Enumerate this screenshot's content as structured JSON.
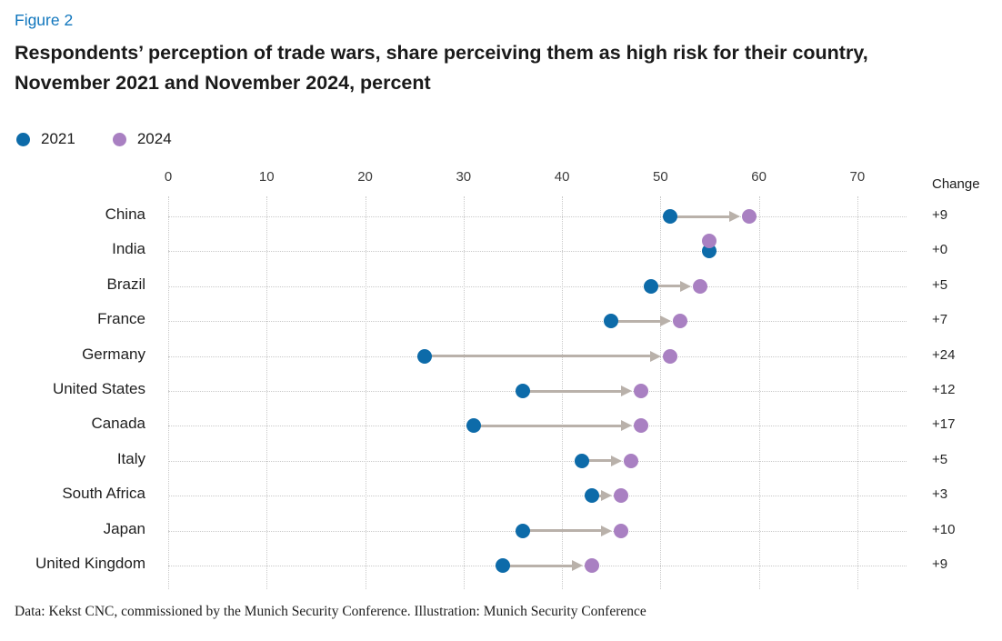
{
  "header": {
    "figure_label": "Figure 2",
    "title_lines": [
      "Respondents’ perception of trade wars, share perceiving them as high risk for their country,",
      "November 2021 and November 2024, percent"
    ]
  },
  "legend": {
    "items": [
      {
        "label": "2021",
        "color": "#0d6ba9"
      },
      {
        "label": "2024",
        "color": "#a980c2"
      }
    ]
  },
  "chart_labels": {
    "change_header": "Change"
  },
  "colors": {
    "figure_label_blue": "#1076bd",
    "title_text": "#1a1a1a",
    "dot_2021": "#0d6ba9",
    "dot_2024": "#a980c2",
    "arrow": "#b9b1aa",
    "gridline": "#c9c9c9",
    "label_text": "#1f1f1f"
  },
  "chart_data": {
    "type": "scatter",
    "variant": "dumbbell-arrow",
    "title": "Respondents’ perception of trade wars, share perceiving them as high risk for their country, November 2021 and November 2024, percent",
    "xlabel": "",
    "ylabel": "",
    "xlim": [
      0,
      75
    ],
    "x_ticks": [
      0,
      10,
      20,
      30,
      40,
      50,
      60,
      70
    ],
    "grid": "dotted",
    "legend_position": "top-left",
    "categories": [
      "China",
      "India",
      "Brazil",
      "France",
      "Germany",
      "United States",
      "Canada",
      "Italy",
      "South Africa",
      "Japan",
      "United Kingdom"
    ],
    "series": [
      {
        "name": "2021",
        "values": [
          51,
          55,
          49,
          45,
          26,
          36,
          31,
          42,
          43,
          36,
          34
        ]
      },
      {
        "name": "2024",
        "values": [
          59,
          55,
          54,
          52,
          51,
          48,
          48,
          47,
          46,
          46,
          43
        ]
      }
    ],
    "changes": [
      "+9",
      "+0",
      "+5",
      "+7",
      "+24",
      "+12",
      "+17",
      "+5",
      "+3",
      "+10",
      "+9"
    ]
  },
  "footer": {
    "credit": "Data: Kekst CNC, commissioned by the Munich Security Conference. Illustration: Munich Security Conference"
  }
}
